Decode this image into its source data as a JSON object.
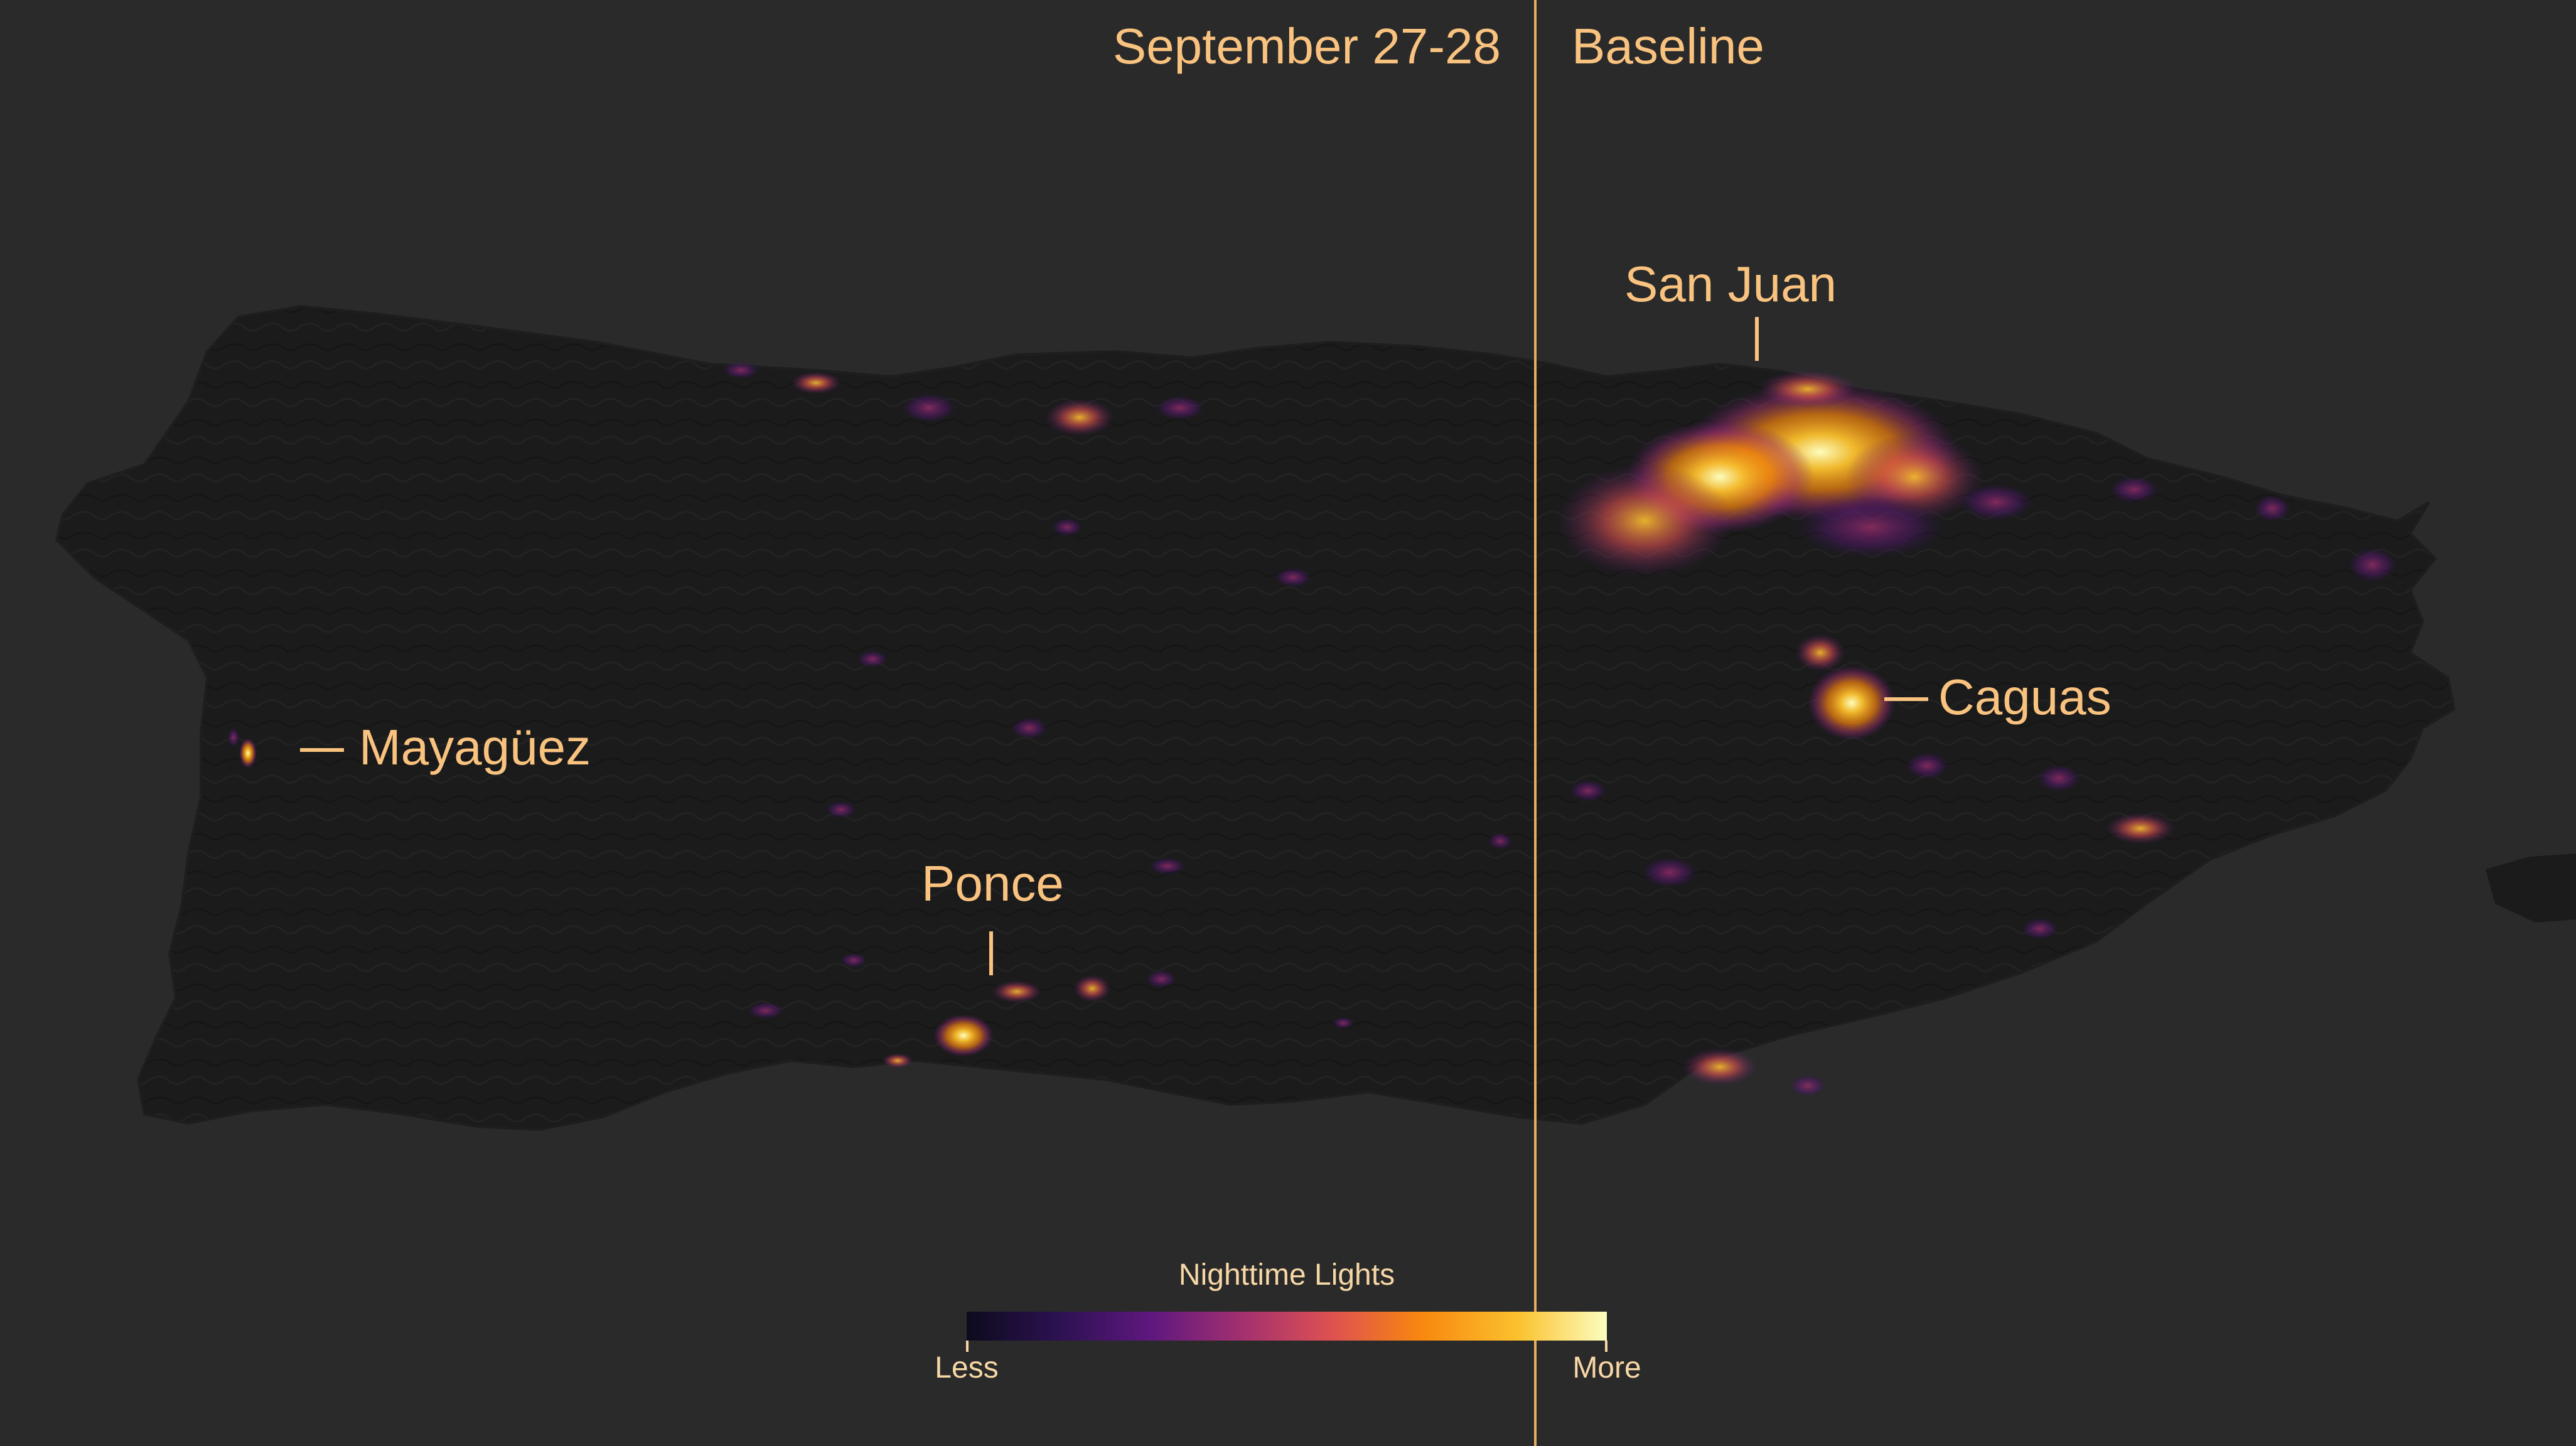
{
  "panels": {
    "left_title": "September 27-28",
    "right_title": "Baseline"
  },
  "cities": {
    "san_juan": "San Juan",
    "caguas": "Caguas",
    "mayaguez": "Mayagüez",
    "ponce": "Ponce"
  },
  "legend": {
    "title": "Nighttime Lights",
    "low": "Less",
    "high": "More",
    "colors": [
      "#0d0b1c",
      "#2b1150",
      "#5f187f",
      "#a3306f",
      "#dd5151",
      "#f8870f",
      "#fbc12d",
      "#fcfdbf"
    ]
  },
  "colors": {
    "background": "#2a2a2a",
    "land": "#1a1a1a",
    "label": "#f9c37f",
    "divider": "#e8ad62"
  }
}
